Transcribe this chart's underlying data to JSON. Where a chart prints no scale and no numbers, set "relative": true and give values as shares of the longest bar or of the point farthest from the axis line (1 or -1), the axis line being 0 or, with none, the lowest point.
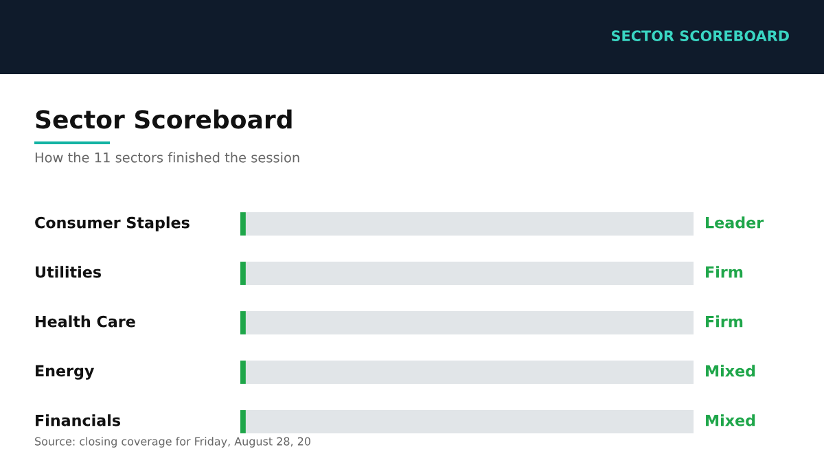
{
  "chart_data": {
    "type": "bar",
    "orientation": "horizontal",
    "relative": true,
    "stacked": true,
    "title": "Sector Scoreboard",
    "subtitle": "How the 11 sectors finished the session",
    "annotations": [
      "SECTOR SCOREBOARD",
      "Source: closing coverage for Friday, August 28, 20"
    ],
    "categories": [
      "Consumer Staples",
      "Utilities",
      "Health Care",
      "Energy",
      "Financials"
    ],
    "series": [
      {
        "color": "#1fa64a",
        "values": [
          0.012,
          0.012,
          0.012,
          0.012,
          0.012
        ]
      },
      {
        "color": "#e1e5e8",
        "values": [
          0.988,
          0.988,
          0.988,
          0.988,
          0.988
        ]
      }
    ],
    "value_labels": [
      "Leader",
      "Firm",
      "Firm",
      "Mixed",
      "Mixed"
    ]
  }
}
